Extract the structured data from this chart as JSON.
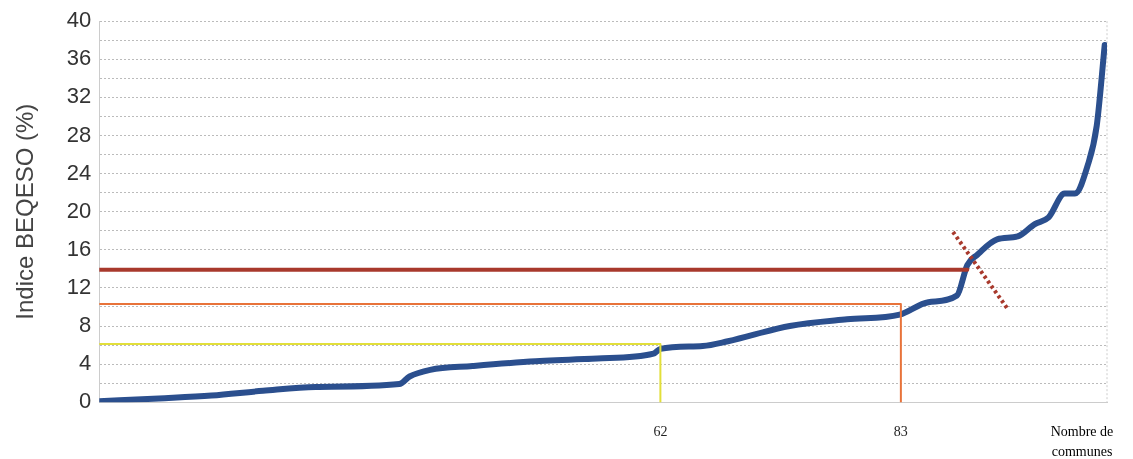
{
  "chart_data": {
    "type": "line",
    "ylabel": "Indice BEQESO (%)",
    "xlabel": "Nombre de communes",
    "xlim": [
      13,
      101
    ],
    "xticks": [
      62,
      83
    ],
    "ylim": [
      0,
      40
    ],
    "yticks": [
      0,
      {
        "value": 2,
        "label": null
      },
      4,
      {
        "value": 6,
        "label": null
      },
      8,
      {
        "value": 10,
        "label": null
      },
      12,
      {
        "value": 14,
        "label": null
      },
      16,
      {
        "value": 18,
        "label": null
      },
      20,
      {
        "value": 22,
        "label": null
      },
      24,
      {
        "value": 26,
        "label": null
      },
      28,
      {
        "value": 30,
        "label": null
      },
      32,
      {
        "value": 34,
        "label": null
      },
      36,
      {
        "value": 38,
        "label": null
      },
      40
    ],
    "grid": "y",
    "legend": false,
    "marker": "none",
    "line_style": "solid",
    "series": [
      {
        "color": "#2b4f8e",
        "x": [
          13,
          18.2,
          22.8,
          27.3,
          31.9,
          39.2,
          40.1,
          41.9,
          45.6,
          51.1,
          56.5,
          61.4,
          62,
          65.7,
          67.9,
          73.3,
          78.3,
          82.9,
          85.4,
          87.9,
          88.8,
          89.7,
          91.4,
          93.2,
          94.7,
          95.9,
          97.3,
          98.2,
          99.3,
          100.1,
          100.8
        ],
        "values": [
          0.1,
          0.4,
          0.7,
          1.2,
          1.6,
          1.9,
          2.7,
          3.4,
          3.8,
          4.3,
          4.6,
          5.1,
          5.6,
          5.9,
          6.4,
          8.0,
          8.7,
          9.2,
          10.5,
          11.2,
          14.4,
          15.5,
          17.1,
          17.4,
          18.7,
          19.4,
          21.9,
          21.9,
          24.8,
          29.0,
          37.5
        ]
      },
      {
        "color": "#e2df3a",
        "x": [
          13,
          62,
          62
        ],
        "values": [
          6.1,
          6.1,
          0
        ]
      },
      {
        "color": "#e8733a",
        "x": [
          13,
          83,
          83
        ],
        "values": [
          10.3,
          10.3,
          0
        ]
      },
      {
        "color": "#a8392c",
        "x": [
          13,
          88.8
        ],
        "values": [
          13.9,
          13.9
        ]
      }
    ]
  }
}
